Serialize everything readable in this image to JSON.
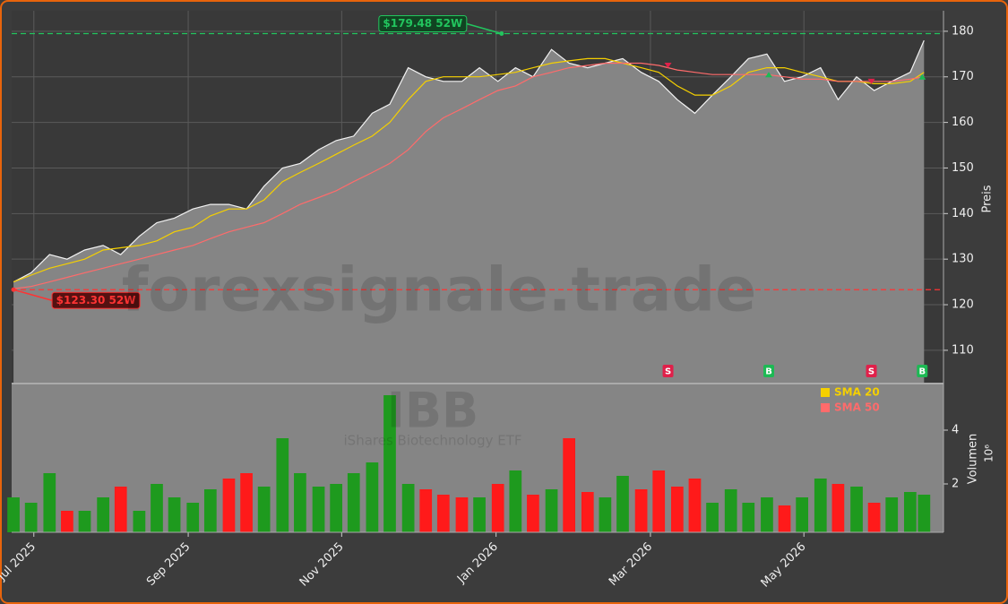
{
  "chart_data": {
    "type": "line",
    "watermark": "forexsignale.trade",
    "symbol": "IBB",
    "symbol_name": "iShares Biotechnology ETF",
    "ylabel": "Preis",
    "ylim": [
      102.9,
      184.5
    ],
    "yticks": [
      110,
      120,
      130,
      140,
      150,
      160,
      170,
      180
    ],
    "xlim": [
      2025.476,
      2026.484
    ],
    "xticks": [
      {
        "value": 2025.5,
        "label": "Jul 2025"
      },
      {
        "value": 2025.667,
        "label": "Sep 2025"
      },
      {
        "value": 2025.833,
        "label": "Nov 2025"
      },
      {
        "value": 2026.0,
        "label": "Jan 2026"
      },
      {
        "value": 2026.167,
        "label": "Mar 2026"
      },
      {
        "value": 2026.333,
        "label": "May 2026"
      }
    ],
    "grid": true,
    "x": [
      2025.478,
      2025.497,
      2025.517,
      2025.536,
      2025.555,
      2025.575,
      2025.594,
      2025.614,
      2025.633,
      2025.652,
      2025.672,
      2025.691,
      2025.711,
      2025.73,
      2025.749,
      2025.769,
      2025.788,
      2025.808,
      2025.827,
      2025.846,
      2025.866,
      2025.885,
      2025.905,
      2025.924,
      2025.943,
      2025.963,
      2025.982,
      2026.002,
      2026.021,
      2026.04,
      2026.06,
      2026.079,
      2026.099,
      2026.118,
      2026.137,
      2026.157,
      2026.176,
      2026.196,
      2026.215,
      2026.234,
      2026.254,
      2026.273,
      2026.293,
      2026.312,
      2026.331,
      2026.351,
      2026.37,
      2026.39,
      2026.409,
      2026.428,
      2026.448,
      2026.463
    ],
    "close": {
      "color": "#f2f2f2",
      "area_color": "#858585",
      "values": [
        125,
        127,
        131,
        130,
        132,
        133,
        131,
        135,
        138,
        139,
        141,
        142,
        142,
        141,
        146,
        150,
        151,
        154,
        156,
        157,
        162,
        164,
        172,
        170,
        169,
        169,
        172,
        169,
        172,
        170,
        176,
        173,
        172,
        173,
        174,
        171,
        169,
        165,
        162,
        166,
        170,
        174,
        175,
        169,
        170,
        172,
        165,
        170,
        167,
        169,
        171,
        178
      ]
    },
    "series": [
      {
        "name": "SMA 20",
        "color": "#f5d000",
        "values": [
          125,
          126.5,
          128,
          129,
          130,
          132,
          132.5,
          133,
          134,
          136,
          137,
          139.5,
          141,
          141,
          143,
          147,
          149,
          151,
          153,
          155,
          157,
          160,
          165,
          169,
          170,
          170,
          170,
          170.5,
          171,
          172,
          173,
          173.5,
          174,
          174,
          173,
          172,
          171,
          168,
          166,
          166,
          168,
          171,
          172,
          172,
          171,
          170,
          169,
          169,
          168.5,
          168.5,
          169,
          171
        ]
      },
      {
        "name": "SMA 50",
        "color": "#ff6b6b",
        "values": [
          123.5,
          124,
          125,
          126,
          127,
          128,
          129,
          130,
          131,
          132,
          133,
          134.5,
          136,
          137,
          138,
          140,
          142,
          143.5,
          145,
          147,
          149,
          151,
          154,
          158,
          161,
          163,
          165,
          167,
          168,
          170,
          171,
          172,
          172.5,
          173,
          173,
          173,
          172.5,
          171.5,
          171,
          170.5,
          170.5,
          170.5,
          170.5,
          170,
          169.5,
          169.5,
          169,
          169,
          169,
          169,
          169.5,
          170
        ]
      }
    ],
    "annotations": [
      {
        "text": "$179.48 52W",
        "value": 179.48,
        "x": 2026.006,
        "color": "#22c55e"
      },
      {
        "text": "$123.30 52W",
        "value": 123.3,
        "x": 2025.478,
        "color": "#ff3333"
      }
    ],
    "signals": [
      {
        "label": "S",
        "x": 2026.186,
        "color": "#e0204a"
      },
      {
        "label": "B",
        "x": 2026.295,
        "color": "#1db954"
      },
      {
        "label": "S",
        "x": 2026.406,
        "color": "#e0204a"
      },
      {
        "label": "B",
        "x": 2026.461,
        "color": "#1db954"
      }
    ],
    "volume": {
      "ylabel": "Volumen",
      "multiplier": "10⁶",
      "ylim": [
        0.2,
        5.7
      ],
      "yticks": [
        2,
        4
      ],
      "values": [
        1.5,
        1.3,
        2.4,
        1.0,
        1.0,
        1.5,
        1.9,
        1.0,
        2.0,
        1.5,
        1.3,
        1.8,
        2.2,
        2.4,
        1.9,
        3.7,
        2.4,
        1.9,
        2.0,
        2.4,
        2.8,
        5.3,
        2.0,
        1.8,
        1.6,
        1.5,
        1.5,
        2.0,
        2.5,
        1.6,
        1.8,
        3.7,
        1.7,
        1.5,
        2.3,
        1.8,
        2.5,
        1.9,
        2.2,
        1.3,
        1.8,
        1.3,
        1.5,
        1.2,
        1.5,
        2.2,
        2.0,
        1.9,
        1.3,
        1.5,
        1.7,
        1.6
      ],
      "colors": [
        "#1e9a1e",
        "#1e9a1e",
        "#1e9a1e",
        "#ff1a1a",
        "#1e9a1e",
        "#1e9a1e",
        "#ff1a1a",
        "#1e9a1e",
        "#1e9a1e",
        "#1e9a1e",
        "#1e9a1e",
        "#1e9a1e",
        "#ff1a1a",
        "#ff1a1a",
        "#1e9a1e",
        "#1e9a1e",
        "#1e9a1e",
        "#1e9a1e",
        "#1e9a1e",
        "#1e9a1e",
        "#1e9a1e",
        "#1e9a1e",
        "#1e9a1e",
        "#ff1a1a",
        "#ff1a1a",
        "#ff1a1a",
        "#1e9a1e",
        "#ff1a1a",
        "#1e9a1e",
        "#ff1a1a",
        "#1e9a1e",
        "#ff1a1a",
        "#ff1a1a",
        "#1e9a1e",
        "#1e9a1e",
        "#ff1a1a",
        "#ff1a1a",
        "#ff1a1a",
        "#ff1a1a",
        "#1e9a1e",
        "#1e9a1e",
        "#1e9a1e",
        "#1e9a1e",
        "#ff1a1a",
        "#1e9a1e",
        "#1e9a1e",
        "#ff1a1a",
        "#1e9a1e",
        "#ff1a1a",
        "#1e9a1e",
        "#1e9a1e",
        "#1e9a1e"
      ]
    }
  }
}
